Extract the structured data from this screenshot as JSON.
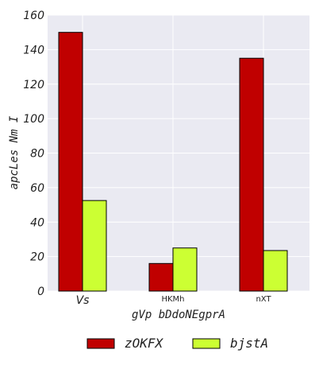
{
  "chart_data": {
    "type": "bar",
    "categories": [
      "Vs",
      "HKMh",
      "nXT"
    ],
    "series": [
      {
        "name": "zOKFX",
        "color": "#c00000",
        "values": [
          150,
          16,
          135
        ]
      },
      {
        "name": "bjstA",
        "color": "#ccff33",
        "values": [
          52.5,
          25,
          23.5
        ]
      }
    ],
    "xlabel": "gVp bDdoNEgprA",
    "ylabel": "apcLes  Nm I",
    "ylim": [
      0,
      160
    ],
    "yticks": [
      0,
      20,
      40,
      60,
      80,
      100,
      120,
      140,
      160
    ],
    "grid": true,
    "legend_position": "bottom",
    "plot_background": "#eaeaf2"
  }
}
